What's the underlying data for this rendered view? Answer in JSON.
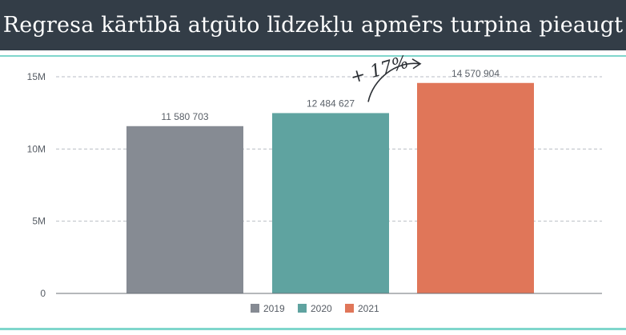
{
  "chart_data": {
    "type": "bar",
    "title": "Regresa kārtībā atgūto līdzekļu apmērs turpina pieaugt",
    "categories": [
      "2019",
      "2020",
      "2021"
    ],
    "values": [
      11580703,
      12484627,
      14570904
    ],
    "value_labels": [
      "11 580 703",
      "12 484 627",
      "14 570 904"
    ],
    "colors": [
      "#868b93",
      "#5fa3a0",
      "#e07659"
    ],
    "ylim": [
      0,
      15000000
    ],
    "yticks": [
      0,
      5000000,
      10000000,
      15000000
    ],
    "ytick_labels": [
      "0",
      "5M",
      "10M",
      "15M"
    ],
    "grid": true,
    "legend": {
      "position": "bottom",
      "entries": [
        "2019",
        "2020",
        "2021"
      ]
    },
    "annotation": {
      "text": "+ 17%",
      "from_category": "2020",
      "to_category": "2021"
    }
  }
}
